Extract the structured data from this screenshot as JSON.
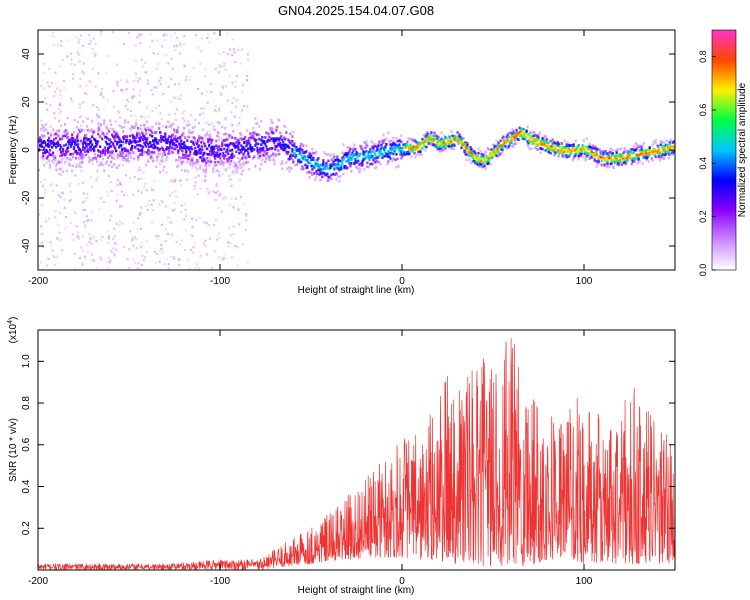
{
  "title": "GN04.2025.154.04.07.G08",
  "chart_data": [
    {
      "type": "heatmap",
      "xlabel": "Height of straight line (km)",
      "ylabel": "Frequency (Hz)",
      "xlim": [
        -200,
        150
      ],
      "ylim": [
        -50,
        50
      ],
      "x_ticks": [
        {
          "value": -200,
          "label": "-200"
        },
        {
          "value": -100,
          "label": "-100"
        },
        {
          "value": 0,
          "label": "0"
        },
        {
          "value": 100,
          "label": "100"
        }
      ],
      "y_ticks": [
        {
          "value": -40,
          "label": "-40"
        },
        {
          "value": -20,
          "label": "-20"
        },
        {
          "value": 0,
          "label": "0"
        },
        {
          "value": 20,
          "label": "20"
        },
        {
          "value": 40,
          "label": "40"
        }
      ],
      "colorbar": {
        "label": "Normalized spectral amplitude",
        "range": [
          0,
          0.9
        ],
        "ticks": [
          {
            "value": 0.0,
            "label": "0.0"
          },
          {
            "value": 0.2,
            "label": "0.2"
          },
          {
            "value": 0.4,
            "label": "0.4"
          },
          {
            "value": 0.6,
            "label": "0.6"
          },
          {
            "value": 0.8,
            "label": "0.8"
          }
        ],
        "colors": [
          "#ffffff",
          "#cc88ff",
          "#8800ff",
          "#0000ff",
          "#00c8ff",
          "#00ff44",
          "#ffee00",
          "#ff4400",
          "#ff33cc"
        ]
      },
      "ridge": [
        {
          "x": -200,
          "y": 2
        },
        {
          "x": -160,
          "y": 3
        },
        {
          "x": -130,
          "y": 4
        },
        {
          "x": -110,
          "y": 0
        },
        {
          "x": -90,
          "y": 1
        },
        {
          "x": -70,
          "y": 4
        },
        {
          "x": -60,
          "y": 0
        },
        {
          "x": -50,
          "y": -5
        },
        {
          "x": -40,
          "y": -8
        },
        {
          "x": -30,
          "y": -3
        },
        {
          "x": -20,
          "y": -2
        },
        {
          "x": -10,
          "y": 0
        },
        {
          "x": 0,
          "y": 1
        },
        {
          "x": 10,
          "y": 2
        },
        {
          "x": 15,
          "y": 6
        },
        {
          "x": 20,
          "y": 3
        },
        {
          "x": 30,
          "y": 5
        },
        {
          "x": 40,
          "y": -3
        },
        {
          "x": 45,
          "y": -4
        },
        {
          "x": 55,
          "y": 3
        },
        {
          "x": 65,
          "y": 8
        },
        {
          "x": 70,
          "y": 5
        },
        {
          "x": 80,
          "y": 2
        },
        {
          "x": 90,
          "y": 0
        },
        {
          "x": 100,
          "y": 1
        },
        {
          "x": 110,
          "y": -3
        },
        {
          "x": 120,
          "y": -3
        },
        {
          "x": 130,
          "y": -1
        },
        {
          "x": 140,
          "y": 0
        },
        {
          "x": 150,
          "y": 2
        }
      ]
    },
    {
      "type": "line",
      "xlabel": "Height of straight line (km)",
      "ylabel": "SNR (10 * v/v)",
      "y_multiplier": "(x10",
      "y_multiplier_exp": "4",
      "y_multiplier_close": ")",
      "xlim": [
        -200,
        150
      ],
      "ylim": [
        0,
        1.15
      ],
      "line_color": "#ee3333",
      "x_ticks": [
        {
          "value": -200,
          "label": "-200"
        },
        {
          "value": -100,
          "label": "-100"
        },
        {
          "value": 0,
          "label": "0"
        },
        {
          "value": 100,
          "label": "100"
        }
      ],
      "y_ticks": [
        {
          "value": 0.2,
          "label": "0.2"
        },
        {
          "value": 0.4,
          "label": "0.4"
        },
        {
          "value": 0.6,
          "label": "0.6"
        },
        {
          "value": 0.8,
          "label": "0.8"
        },
        {
          "value": 1.0,
          "label": "1.0"
        }
      ],
      "envelope": [
        {
          "x": -200,
          "lo": 0.0,
          "hi": 0.03
        },
        {
          "x": -130,
          "lo": 0.0,
          "hi": 0.03
        },
        {
          "x": -100,
          "lo": 0.0,
          "hi": 0.05
        },
        {
          "x": -80,
          "lo": 0.0,
          "hi": 0.05
        },
        {
          "x": -70,
          "lo": 0.01,
          "hi": 0.1
        },
        {
          "x": -60,
          "lo": 0.02,
          "hi": 0.16
        },
        {
          "x": -50,
          "lo": 0.03,
          "hi": 0.22
        },
        {
          "x": -40,
          "lo": 0.04,
          "hi": 0.27
        },
        {
          "x": -30,
          "lo": 0.05,
          "hi": 0.36
        },
        {
          "x": -20,
          "lo": 0.06,
          "hi": 0.44
        },
        {
          "x": -10,
          "lo": 0.06,
          "hi": 0.55
        },
        {
          "x": 0,
          "lo": 0.06,
          "hi": 0.68
        },
        {
          "x": 10,
          "lo": 0.05,
          "hi": 0.64
        },
        {
          "x": 20,
          "lo": 0.04,
          "hi": 0.86
        },
        {
          "x": 30,
          "lo": 0.03,
          "hi": 1.05
        },
        {
          "x": 40,
          "lo": 0.02,
          "hi": 0.96
        },
        {
          "x": 50,
          "lo": 0.02,
          "hi": 1.08
        },
        {
          "x": 60,
          "lo": 0.02,
          "hi": 1.12
        },
        {
          "x": 70,
          "lo": 0.02,
          "hi": 0.98
        },
        {
          "x": 80,
          "lo": 0.05,
          "hi": 0.8
        },
        {
          "x": 90,
          "lo": 0.06,
          "hi": 0.78
        },
        {
          "x": 100,
          "lo": 0.03,
          "hi": 0.86
        },
        {
          "x": 110,
          "lo": 0.03,
          "hi": 0.72
        },
        {
          "x": 120,
          "lo": 0.03,
          "hi": 0.8
        },
        {
          "x": 130,
          "lo": 0.03,
          "hi": 0.9
        },
        {
          "x": 140,
          "lo": 0.03,
          "hi": 0.7
        },
        {
          "x": 150,
          "lo": 0.03,
          "hi": 0.62
        }
      ]
    }
  ]
}
